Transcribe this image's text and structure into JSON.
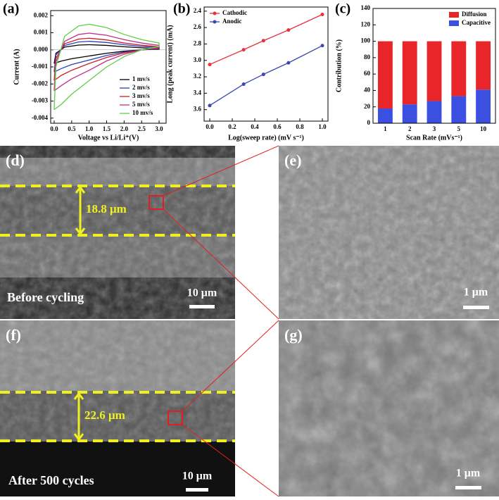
{
  "chart_data": [
    {
      "type": "line",
      "panel_label": "(a)",
      "xlabel": "Voltage vs Li/Li⁺(V)",
      "ylabel": "Current (A)",
      "x": [
        0,
        0.05,
        0.3,
        0.7,
        1.0,
        1.5,
        2.0,
        2.5,
        3.0,
        3.0,
        2.5,
        2.0,
        1.5,
        1.0,
        0.5,
        0.2,
        0
      ],
      "series": [
        {
          "name": "1 mv/s",
          "color": "#000000",
          "values": [
            -0.0008,
            -0.0002,
            0.00016,
            0.00028,
            0.0003,
            0.00026,
            0.00018,
            0.00012,
            8e-05,
            4e-05,
            0,
            -8e-05,
            -0.0002,
            -0.00036,
            -0.00052,
            -0.00066,
            -0.0008
          ]
        },
        {
          "name": "2 mv/s",
          "color": "#2b3fb8",
          "values": [
            -0.0013,
            -0.0003,
            0.00026,
            0.00046,
            0.0005,
            0.00043,
            0.0003,
            0.0002,
            0.00013,
            7e-05,
            0,
            -0.00013,
            -0.00033,
            -0.0006,
            -0.00086,
            -0.0011,
            -0.0013
          ]
        },
        {
          "name": "3 mv/s",
          "color": "#c8202a",
          "values": [
            -0.0018,
            -0.0005,
            0.00036,
            0.00063,
            0.00068,
            0.00058,
            0.0004,
            0.00027,
            0.00018,
            9e-05,
            0,
            -0.00018,
            -0.00045,
            -0.0008,
            -0.0012,
            -0.0015,
            -0.0018
          ]
        },
        {
          "name": "5 mv/s",
          "color": "#c0308a",
          "values": [
            -0.0024,
            -0.0007,
            0.0005,
            0.0009,
            0.00098,
            0.00085,
            0.0006,
            0.0004,
            0.00026,
            0.00013,
            0,
            -0.00026,
            -0.00065,
            -0.0012,
            -0.0017,
            -0.0021,
            -0.0024
          ]
        },
        {
          "name": "10 mv/s",
          "color": "#5ed045",
          "values": [
            -0.0035,
            -0.001,
            0.0008,
            0.0014,
            0.0015,
            0.0013,
            0.0009,
            0.0006,
            0.0004,
            0.0002,
            0,
            -0.0004,
            -0.001,
            -0.0018,
            -0.0026,
            -0.0032,
            -0.0035
          ]
        }
      ],
      "xlim": [
        -0.1,
        3.2
      ],
      "xticks": [
        {
          "value": 0,
          "label": "0.0"
        },
        0.5,
        {
          "value": 1,
          "label": "1.0"
        },
        1.5,
        {
          "value": 2,
          "label": "2.0"
        },
        2.5,
        {
          "value": 3,
          "label": "3.0"
        }
      ],
      "ylim": [
        -0.0043,
        0.0023
      ],
      "yticks": [
        -0.004,
        -0.003,
        -0.002,
        -0.001,
        {
          "value": 0,
          "label": "0.000"
        },
        0.001,
        0.002
      ],
      "legend": "lower right",
      "markers": false
    },
    {
      "type": "line",
      "panel_label": "(b)",
      "xlabel": "Log(sweep rate) (mV s⁻¹)",
      "ylabel": "Long (peak current) (mA)",
      "x": [
        0,
        0.301,
        0.477,
        0.699,
        1.0
      ],
      "series": [
        {
          "name": "Cathodic",
          "color": "#e8303a",
          "values": [
            3.05,
            2.87,
            2.76,
            2.63,
            2.44
          ]
        },
        {
          "name": "Anodic",
          "color": "#3848b0",
          "values": [
            3.55,
            3.29,
            3.17,
            3.03,
            2.82
          ]
        }
      ],
      "xlim": [
        -0.05,
        1.05
      ],
      "xticks": [
        {
          "value": 0,
          "label": "0.0"
        },
        0.2,
        0.4,
        0.6,
        0.8,
        {
          "value": 1,
          "label": "1.0"
        }
      ],
      "ylim": [
        3.74,
        2.35
      ],
      "yticks": [
        2.4,
        2.6,
        2.8,
        {
          "value": 3,
          "label": "3.0"
        },
        3.2,
        3.4,
        3.6
      ],
      "legend": "upper left",
      "markers": true
    },
    {
      "type": "bar",
      "panel_label": "(c)",
      "xlabel": "Scan Rate (mVs⁻¹)",
      "ylabel": "Contribution (%)",
      "categories": [
        "1",
        "2",
        "3",
        "5",
        "10"
      ],
      "series": [
        {
          "name": "Capacitive",
          "color": "#3b4fe0",
          "values": [
            18,
            23,
            27,
            33,
            41
          ]
        },
        {
          "name": "Diffusion",
          "color": "#e8262a",
          "values": [
            82,
            77,
            73,
            67,
            59
          ]
        }
      ],
      "ylim": [
        0,
        140
      ],
      "yticks": [
        0,
        20,
        40,
        60,
        80,
        100,
        120,
        140
      ],
      "legend": "upper right",
      "stacked": true
    }
  ],
  "images": [
    {
      "panel_label": "(d)",
      "thickness": "18.8 μm",
      "scale_bar": "10 μm",
      "caption": "Before cycling"
    },
    {
      "panel_label": "(e)",
      "scale_bar": "1 μm"
    },
    {
      "panel_label": "(f)",
      "thickness": "22.6 μm",
      "scale_bar": "10 μm",
      "caption": "After 500 cycles"
    },
    {
      "panel_label": "(g)",
      "scale_bar": "1 μm"
    }
  ]
}
